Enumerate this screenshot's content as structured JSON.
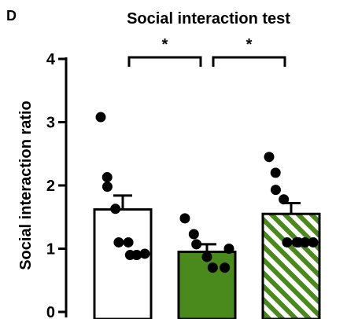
{
  "panel_label": "D",
  "chart_data": {
    "type": "bar",
    "title": "Social interaction test",
    "ylabel": "Social interaction ratio",
    "xlabel": "",
    "ylim": [
      0,
      4
    ],
    "yticks": [
      "0",
      "1",
      "2",
      "3",
      "4"
    ],
    "grid": false,
    "bars": [
      {
        "mean": 1.62,
        "sem": 0.22,
        "fill": "white",
        "points": [
          3.08,
          2.13,
          1.98,
          1.63,
          1.1,
          1.1,
          0.9,
          0.9,
          0.9,
          0.92
        ]
      },
      {
        "mean": 0.95,
        "sem": 0.12,
        "fill": "solid-green",
        "points": [
          1.48,
          1.23,
          1.07,
          0.87,
          0.7,
          0.7,
          1.0
        ]
      },
      {
        "mean": 1.55,
        "sem": 0.17,
        "fill": "hatched-green",
        "points": [
          2.45,
          2.2,
          1.93,
          1.78,
          1.1,
          1.1,
          1.1,
          1.1,
          1.1,
          1.1
        ]
      }
    ],
    "significance": [
      {
        "from": 0,
        "to": 1,
        "label": "*"
      },
      {
        "from": 1,
        "to": 2,
        "label": "*"
      }
    ],
    "colors": {
      "green": "#4a8a1c",
      "axis": "#000000",
      "dot": "#000000"
    }
  }
}
